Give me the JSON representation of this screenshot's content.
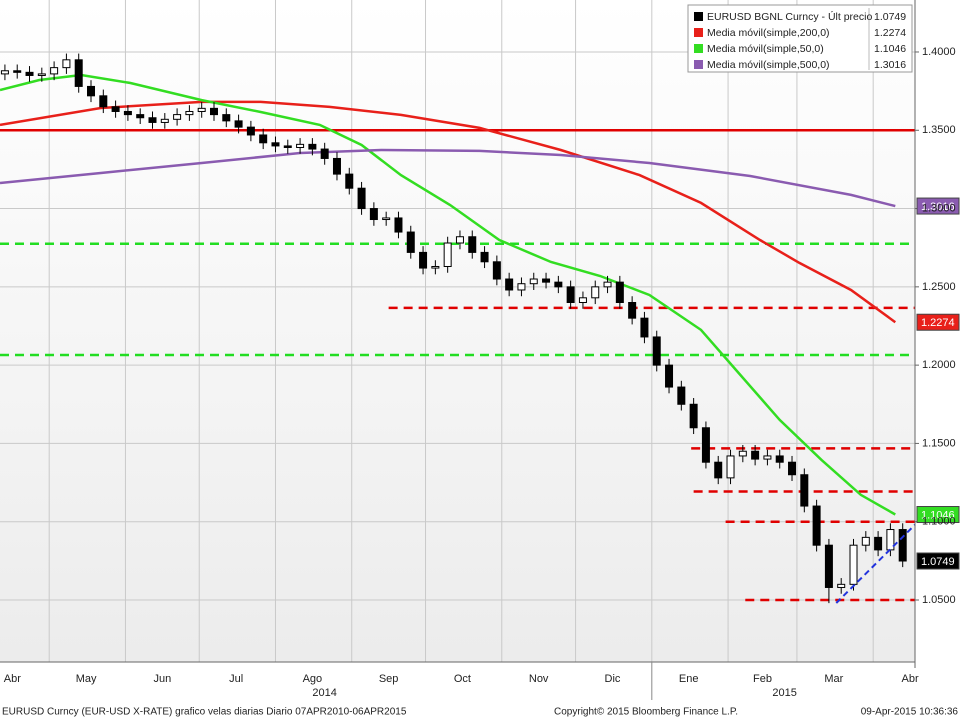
{
  "chart_data": {
    "type": "candlestick",
    "x": [
      12,
      17,
      22,
      27,
      32,
      37,
      42,
      47,
      52,
      57,
      62,
      67,
      72,
      77,
      82,
      87,
      92,
      97,
      102,
      107,
      112,
      117,
      122,
      127,
      132,
      137,
      142,
      147,
      152,
      157,
      162,
      167,
      172,
      177,
      182,
      187,
      192,
      197,
      202,
      207,
      212,
      217,
      222,
      227,
      232,
      237,
      242,
      247,
      252,
      257,
      262,
      267,
      272,
      277,
      282,
      287,
      292,
      297,
      302,
      307,
      312,
      317,
      322,
      327,
      332,
      337,
      342,
      347,
      352,
      357,
      362,
      367,
      372,
      377
    ],
    "open": [
      1.386,
      1.388,
      1.387,
      1.385,
      1.386,
      1.39,
      1.395,
      1.378,
      1.372,
      1.365,
      1.362,
      1.36,
      1.358,
      1.355,
      1.357,
      1.36,
      1.362,
      1.364,
      1.36,
      1.356,
      1.352,
      1.347,
      1.342,
      1.34,
      1.339,
      1.341,
      1.338,
      1.332,
      1.322,
      1.313,
      1.3,
      1.293,
      1.294,
      1.285,
      1.272,
      1.262,
      1.263,
      1.278,
      1.282,
      1.272,
      1.266,
      1.255,
      1.248,
      1.252,
      1.255,
      1.253,
      1.25,
      1.24,
      1.243,
      1.25,
      1.253,
      1.24,
      1.23,
      1.218,
      1.2,
      1.186,
      1.175,
      1.16,
      1.138,
      1.128,
      1.142,
      1.145,
      1.14,
      1.142,
      1.138,
      1.13,
      1.11,
      1.085,
      1.058,
      1.06,
      1.085,
      1.09,
      1.082,
      1.095
    ],
    "high": [
      1.392,
      1.392,
      1.391,
      1.39,
      1.394,
      1.399,
      1.399,
      1.382,
      1.376,
      1.369,
      1.366,
      1.364,
      1.362,
      1.361,
      1.364,
      1.366,
      1.368,
      1.368,
      1.364,
      1.36,
      1.356,
      1.351,
      1.346,
      1.344,
      1.345,
      1.345,
      1.342,
      1.336,
      1.326,
      1.317,
      1.304,
      1.298,
      1.298,
      1.289,
      1.276,
      1.267,
      1.282,
      1.286,
      1.286,
      1.276,
      1.27,
      1.259,
      1.256,
      1.259,
      1.259,
      1.257,
      1.254,
      1.247,
      1.254,
      1.257,
      1.257,
      1.244,
      1.234,
      1.222,
      1.204,
      1.19,
      1.179,
      1.164,
      1.142,
      1.146,
      1.149,
      1.149,
      1.146,
      1.146,
      1.142,
      1.134,
      1.114,
      1.089,
      1.064,
      1.089,
      1.094,
      1.094,
      1.099,
      1.099
    ],
    "low": [
      1.382,
      1.383,
      1.381,
      1.381,
      1.382,
      1.386,
      1.374,
      1.368,
      1.361,
      1.358,
      1.356,
      1.354,
      1.351,
      1.351,
      1.353,
      1.356,
      1.358,
      1.356,
      1.352,
      1.348,
      1.343,
      1.338,
      1.336,
      1.335,
      1.335,
      1.334,
      1.328,
      1.318,
      1.309,
      1.296,
      1.289,
      1.289,
      1.281,
      1.268,
      1.258,
      1.258,
      1.259,
      1.274,
      1.268,
      1.262,
      1.251,
      1.244,
      1.244,
      1.248,
      1.249,
      1.246,
      1.236,
      1.236,
      1.239,
      1.246,
      1.236,
      1.226,
      1.214,
      1.196,
      1.182,
      1.171,
      1.156,
      1.134,
      1.124,
      1.124,
      1.138,
      1.136,
      1.136,
      1.134,
      1.126,
      1.106,
      1.081,
      1.048,
      1.054,
      1.056,
      1.081,
      1.078,
      1.078,
      1.071
    ],
    "close": [
      1.388,
      1.387,
      1.385,
      1.386,
      1.39,
      1.395,
      1.378,
      1.372,
      1.365,
      1.362,
      1.36,
      1.358,
      1.355,
      1.357,
      1.36,
      1.362,
      1.364,
      1.36,
      1.356,
      1.352,
      1.347,
      1.342,
      1.34,
      1.339,
      1.341,
      1.338,
      1.332,
      1.322,
      1.313,
      1.3,
      1.293,
      1.294,
      1.285,
      1.272,
      1.262,
      1.263,
      1.278,
      1.282,
      1.272,
      1.266,
      1.255,
      1.248,
      1.252,
      1.255,
      1.253,
      1.25,
      1.24,
      1.243,
      1.25,
      1.253,
      1.24,
      1.23,
      1.218,
      1.2,
      1.186,
      1.175,
      1.16,
      1.138,
      1.128,
      1.142,
      1.145,
      1.14,
      1.142,
      1.138,
      1.13,
      1.11,
      1.085,
      1.058,
      1.06,
      1.085,
      1.09,
      1.082,
      1.095,
      1.0749
    ],
    "price_name": "EURUSD BGNL Curncy - Últ precio",
    "price_label": "1.0749",
    "price_color": "#000000",
    "series": [
      {
        "name": "Media móvil(simple,200,0)",
        "color": "#e8201a",
        "last_label": "1.2274",
        "x": [
          10,
          51,
          92,
          116,
          144,
          173,
          205,
          238,
          270,
          295,
          319,
          335,
          356,
          374
        ],
        "values": [
          1.3534,
          1.3642,
          1.3681,
          1.3681,
          1.3649,
          1.3598,
          1.3515,
          1.3374,
          1.3214,
          1.3036,
          1.2799,
          1.2653,
          1.248,
          1.2274
        ]
      },
      {
        "name": "Media móvil(simple,50,0)",
        "color": "#33dd22",
        "last_label": "1.1046",
        "x": [
          10,
          26,
          43,
          63,
          92,
          116,
          140,
          157,
          173,
          193,
          213,
          234,
          254,
          274,
          295,
          311,
          327,
          344,
          360,
          374
        ],
        "values": [
          1.3757,
          1.3821,
          1.3853,
          1.3802,
          1.3693,
          1.3617,
          1.3534,
          1.3406,
          1.3214,
          1.3023,
          1.2799,
          1.2659,
          1.2569,
          1.2448,
          1.2225,
          1.1937,
          1.165,
          1.1395,
          1.1171,
          1.1046
        ]
      },
      {
        "name": "Media móvil(simple,500,0)",
        "color": "#8a5bb0",
        "last_label": "1.3016",
        "x": [
          10,
          51,
          92,
          132,
          165,
          205,
          238,
          274,
          315,
          356,
          374
        ],
        "values": [
          1.3163,
          1.3227,
          1.3291,
          1.3355,
          1.3374,
          1.3368,
          1.3342,
          1.3291,
          1.3208,
          1.3087,
          1.3016
        ]
      }
    ],
    "levels": [
      {
        "value": 1.35,
        "start": 10,
        "color": "#e00000",
        "style": "solid"
      },
      {
        "value": 1.2775,
        "start": 10,
        "color": "#22dd22",
        "style": "dashed"
      },
      {
        "value": 1.2065,
        "start": 10,
        "color": "#22dd22",
        "style": "dashed"
      },
      {
        "value": 1.2366,
        "start": 168,
        "color": "#e00000",
        "style": "dashed"
      },
      {
        "value": 1.1468,
        "start": 291,
        "color": "#e00000",
        "style": "dashed"
      },
      {
        "value": 1.1193,
        "start": 292,
        "color": "#e00000",
        "style": "dashed"
      },
      {
        "value": 1.1,
        "start": 305,
        "color": "#e00000",
        "style": "dashed"
      },
      {
        "value": 1.05,
        "start": 313,
        "color": "#e00000",
        "style": "dashed"
      }
    ],
    "trendline": {
      "x": [
        350,
        382
      ],
      "values": [
        1.0481,
        1.0981
      ],
      "color": "#2233dd"
    },
    "xlim": [
      10,
      382
    ],
    "ylim": [
      1.0104,
      1.4332
    ],
    "yticks": [
      {
        "value": 1.05,
        "label": "1.0500"
      },
      {
        "value": 1.1,
        "label": "1.1000"
      },
      {
        "value": 1.15,
        "label": "1.1500"
      },
      {
        "value": 1.2,
        "label": "1.2000"
      },
      {
        "value": 1.25,
        "label": "1.2500"
      },
      {
        "value": 1.3,
        "label": "1.3000"
      },
      {
        "value": 1.35,
        "label": "1.3500"
      },
      {
        "value": 1.4,
        "label": "1.4000"
      }
    ],
    "xgrid": [
      30,
      61,
      91,
      122,
      153,
      183,
      214,
      244,
      275,
      306,
      334,
      365
    ],
    "year_break": 275,
    "xticks": [
      {
        "value": 15,
        "label": "Abr"
      },
      {
        "value": 45,
        "label": "May"
      },
      {
        "value": 76,
        "label": "Jun"
      },
      {
        "value": 106,
        "label": "Jul"
      },
      {
        "value": 137,
        "label": "Ago"
      },
      {
        "value": 168,
        "label": "Sep"
      },
      {
        "value": 198,
        "label": "Oct"
      },
      {
        "value": 229,
        "label": "Nov"
      },
      {
        "value": 259,
        "label": "Dic"
      },
      {
        "value": 290,
        "label": "Ene"
      },
      {
        "value": 320,
        "label": "Feb"
      },
      {
        "value": 349,
        "label": "Mar"
      },
      {
        "value": 380,
        "label": "Abr"
      }
    ],
    "year_ticks": [
      {
        "value": 142,
        "label": "2014"
      },
      {
        "value": 329,
        "label": "2015"
      }
    ],
    "grid": true,
    "footer": {
      "left": "EURUSD Curncy (EUR-USD X-RATE) grafico velas diarias  Diario 07APR2010-06APR2015",
      "center": "Copyright© 2015 Bloomberg Finance L.P.",
      "right": "09-Apr-2015 10:36:36"
    }
  }
}
